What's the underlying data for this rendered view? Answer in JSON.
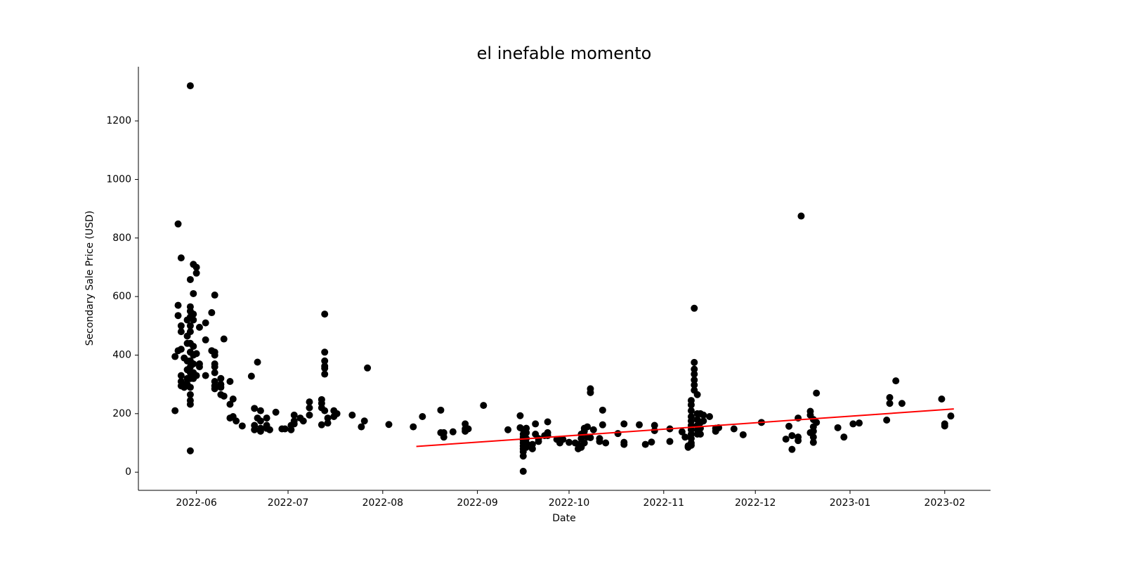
{
  "chart_data": {
    "type": "scatter",
    "title": "el inefable momento",
    "xlabel": "Date",
    "ylabel": "Secondary Sale Price (USD)",
    "xlim": [
      "2022-05-13",
      "2023-02-16"
    ],
    "xticks": [
      {
        "value": "2022-06-01",
        "label": "2022-06"
      },
      {
        "value": "2022-07-01",
        "label": "2022-07"
      },
      {
        "value": "2022-08-01",
        "label": "2022-08"
      },
      {
        "value": "2022-09-01",
        "label": "2022-09"
      },
      {
        "value": "2022-10-01",
        "label": "2022-10"
      },
      {
        "value": "2022-11-01",
        "label": "2022-11"
      },
      {
        "value": "2022-12-01",
        "label": "2022-12"
      },
      {
        "value": "2023-01-01",
        "label": "2023-01"
      },
      {
        "value": "2023-02-01",
        "label": "2023-02"
      }
    ],
    "ylim": [
      -62,
      1385
    ],
    "yticks": [
      0,
      200,
      400,
      600,
      800,
      1000,
      1200
    ],
    "series": [
      {
        "type": "scatter",
        "color": "#000000",
        "x": [
          "2022-05-25",
          "2022-05-25",
          "2022-05-26",
          "2022-05-26",
          "2022-05-26",
          "2022-05-26",
          "2022-05-27",
          "2022-05-27",
          "2022-05-27",
          "2022-05-27",
          "2022-05-27",
          "2022-05-27",
          "2022-05-27",
          "2022-05-28",
          "2022-05-28",
          "2022-05-28",
          "2022-05-29",
          "2022-05-29",
          "2022-05-29",
          "2022-05-29",
          "2022-05-29",
          "2022-05-29",
          "2022-05-29",
          "2022-05-30",
          "2022-05-30",
          "2022-05-30",
          "2022-05-30",
          "2022-05-30",
          "2022-05-30",
          "2022-05-30",
          "2022-05-30",
          "2022-05-30",
          "2022-05-30",
          "2022-05-30",
          "2022-05-30",
          "2022-05-30",
          "2022-05-30",
          "2022-05-30",
          "2022-05-30",
          "2022-05-30",
          "2022-05-30",
          "2022-05-31",
          "2022-05-31",
          "2022-05-31",
          "2022-05-31",
          "2022-05-31",
          "2022-05-31",
          "2022-05-31",
          "2022-05-31",
          "2022-05-31",
          "2022-06-01",
          "2022-06-01",
          "2022-06-01",
          "2022-06-01",
          "2022-06-02",
          "2022-06-02",
          "2022-06-02",
          "2022-06-04",
          "2022-06-04",
          "2022-06-04",
          "2022-06-06",
          "2022-06-06",
          "2022-06-07",
          "2022-06-07",
          "2022-06-07",
          "2022-06-07",
          "2022-06-07",
          "2022-06-07",
          "2022-06-07",
          "2022-06-07",
          "2022-06-07",
          "2022-06-09",
          "2022-06-09",
          "2022-06-09",
          "2022-06-09",
          "2022-06-10",
          "2022-06-10",
          "2022-06-12",
          "2022-06-12",
          "2022-06-12",
          "2022-06-13",
          "2022-06-13",
          "2022-06-14",
          "2022-06-16",
          "2022-06-19",
          "2022-06-20",
          "2022-06-20",
          "2022-06-20",
          "2022-06-21",
          "2022-06-21",
          "2022-06-22",
          "2022-06-22",
          "2022-06-22",
          "2022-06-22",
          "2022-06-24",
          "2022-06-24",
          "2022-06-24",
          "2022-06-25",
          "2022-06-27",
          "2022-06-29",
          "2022-06-30",
          "2022-07-02",
          "2022-07-02",
          "2022-07-03",
          "2022-07-03",
          "2022-07-03",
          "2022-07-05",
          "2022-07-06",
          "2022-07-08",
          "2022-07-08",
          "2022-07-08",
          "2022-07-12",
          "2022-07-12",
          "2022-07-12",
          "2022-07-12",
          "2022-07-13",
          "2022-07-13",
          "2022-07-13",
          "2022-07-13",
          "2022-07-13",
          "2022-07-13",
          "2022-07-13",
          "2022-07-14",
          "2022-07-14",
          "2022-07-16",
          "2022-07-16",
          "2022-07-17",
          "2022-07-22",
          "2022-07-25",
          "2022-07-26",
          "2022-07-27",
          "2022-08-03",
          "2022-08-11",
          "2022-08-14",
          "2022-08-20",
          "2022-08-20",
          "2022-08-21",
          "2022-08-21",
          "2022-08-24",
          "2022-08-28",
          "2022-08-28",
          "2022-08-28",
          "2022-08-29",
          "2022-09-03",
          "2022-09-11",
          "2022-09-15",
          "2022-09-15",
          "2022-09-16",
          "2022-09-16",
          "2022-09-16",
          "2022-09-16",
          "2022-09-16",
          "2022-09-16",
          "2022-09-16",
          "2022-09-16",
          "2022-09-16",
          "2022-09-16",
          "2022-09-17",
          "2022-09-17",
          "2022-09-17",
          "2022-09-17",
          "2022-09-17",
          "2022-09-19",
          "2022-09-19",
          "2022-09-20",
          "2022-09-20",
          "2022-09-21",
          "2022-09-21",
          "2022-09-23",
          "2022-09-24",
          "2022-09-24",
          "2022-09-24",
          "2022-09-27",
          "2022-09-28",
          "2022-09-28",
          "2022-09-29",
          "2022-10-01",
          "2022-10-03",
          "2022-10-04",
          "2022-10-04",
          "2022-10-05",
          "2022-10-05",
          "2022-10-05",
          "2022-10-05",
          "2022-10-06",
          "2022-10-06",
          "2022-10-06",
          "2022-10-07",
          "2022-10-07",
          "2022-10-08",
          "2022-10-08",
          "2022-10-08",
          "2022-10-09",
          "2022-10-11",
          "2022-10-11",
          "2022-10-12",
          "2022-10-12",
          "2022-10-13",
          "2022-10-17",
          "2022-10-19",
          "2022-10-19",
          "2022-10-19",
          "2022-10-24",
          "2022-10-26",
          "2022-10-28",
          "2022-10-29",
          "2022-10-29",
          "2022-11-03",
          "2022-11-03",
          "2022-11-07",
          "2022-11-08",
          "2022-11-09",
          "2022-11-09",
          "2022-11-10",
          "2022-11-10",
          "2022-11-10",
          "2022-11-10",
          "2022-11-10",
          "2022-11-10",
          "2022-11-10",
          "2022-11-10",
          "2022-11-10",
          "2022-11-10",
          "2022-11-10",
          "2022-11-11",
          "2022-11-11",
          "2022-11-11",
          "2022-11-11",
          "2022-11-11",
          "2022-11-11",
          "2022-11-11",
          "2022-11-12",
          "2022-11-12",
          "2022-11-12",
          "2022-11-12",
          "2022-11-12",
          "2022-11-12",
          "2022-11-13",
          "2022-11-13",
          "2022-11-13",
          "2022-11-13",
          "2022-11-14",
          "2022-11-14",
          "2022-11-16",
          "2022-11-18",
          "2022-11-18",
          "2022-11-19",
          "2022-11-24",
          "2022-11-27",
          "2022-12-03",
          "2022-12-11",
          "2022-12-12",
          "2022-12-13",
          "2022-12-13",
          "2022-12-15",
          "2022-12-15",
          "2022-12-15",
          "2022-12-16",
          "2022-12-19",
          "2022-12-19",
          "2022-12-19",
          "2022-12-20",
          "2022-12-20",
          "2022-12-20",
          "2022-12-20",
          "2022-12-20",
          "2022-12-21",
          "2022-12-21",
          "2022-12-28",
          "2022-12-30",
          "2023-01-02",
          "2023-01-04",
          "2023-01-13",
          "2023-01-14",
          "2023-01-14",
          "2023-01-16",
          "2023-01-18",
          "2023-01-31",
          "2023-02-01",
          "2023-02-01",
          "2023-02-03"
        ],
        "values": [
          395,
          210,
          848,
          570,
          535,
          415,
          732,
          500,
          480,
          420,
          330,
          310,
          295,
          390,
          300,
          290,
          520,
          465,
          440,
          380,
          350,
          320,
          300,
          1320,
          658,
          565,
          550,
          530,
          500,
          480,
          440,
          410,
          380,
          360,
          340,
          320,
          290,
          265,
          245,
          232,
          73,
          710,
          610,
          540,
          520,
          430,
          400,
          370,
          340,
          320,
          700,
          680,
          405,
          330,
          495,
          370,
          360,
          510,
          452,
          330,
          545,
          415,
          605,
          410,
          400,
          370,
          360,
          340,
          310,
          295,
          285,
          320,
          300,
          290,
          265,
          455,
          260,
          310,
          232,
          185,
          250,
          190,
          175,
          158,
          328,
          218,
          160,
          145,
          376,
          185,
          210,
          175,
          150,
          140,
          185,
          160,
          150,
          145,
          205,
          148,
          148,
          160,
          145,
          195,
          175,
          165,
          185,
          175,
          240,
          220,
          195,
          248,
          235,
          220,
          162,
          540,
          410,
          380,
          362,
          355,
          335,
          210,
          185,
          168,
          210,
          190,
          200,
          195,
          155,
          175,
          356,
          163,
          155,
          190,
          212,
          135,
          135,
          120,
          138,
          165,
          148,
          140,
          148,
          228,
          145,
          193,
          152,
          145,
          130,
          120,
          110,
          100,
          90,
          80,
          70,
          55,
          3,
          150,
          135,
          115,
          100,
          85,
          95,
          80,
          165,
          130,
          115,
          105,
          125,
          172,
          135,
          125,
          112,
          100,
          110,
          112,
          102,
          100,
          80,
          95,
          130,
          115,
          90,
          85,
          150,
          140,
          100,
          155,
          120,
          285,
          272,
          118,
          145,
          115,
          105,
          212,
          162,
          100,
          132,
          165,
          102,
          95,
          162,
          95,
          103,
          160,
          142,
          148,
          105,
          138,
          120,
          90,
          85,
          245,
          230,
          210,
          190,
          175,
          160,
          145,
          130,
          115,
          100,
          92,
          560,
          375,
          352,
          335,
          315,
          298,
          280,
          265,
          200,
          180,
          160,
          145,
          130,
          200,
          170,
          150,
          130,
          195,
          175,
          190,
          150,
          140,
          152,
          148,
          128,
          170,
          113,
          157,
          78,
          125,
          185,
          120,
          108,
          875,
          208,
          195,
          135,
          180,
          155,
          140,
          120,
          102,
          270,
          170,
          152,
          120,
          165,
          168,
          178,
          255,
          235,
          312,
          235,
          250,
          165,
          158,
          192
        ]
      },
      {
        "type": "line",
        "color": "#ff0000",
        "x": [
          "2022-08-12",
          "2023-02-04"
        ],
        "values": [
          88,
          216
        ]
      }
    ]
  }
}
